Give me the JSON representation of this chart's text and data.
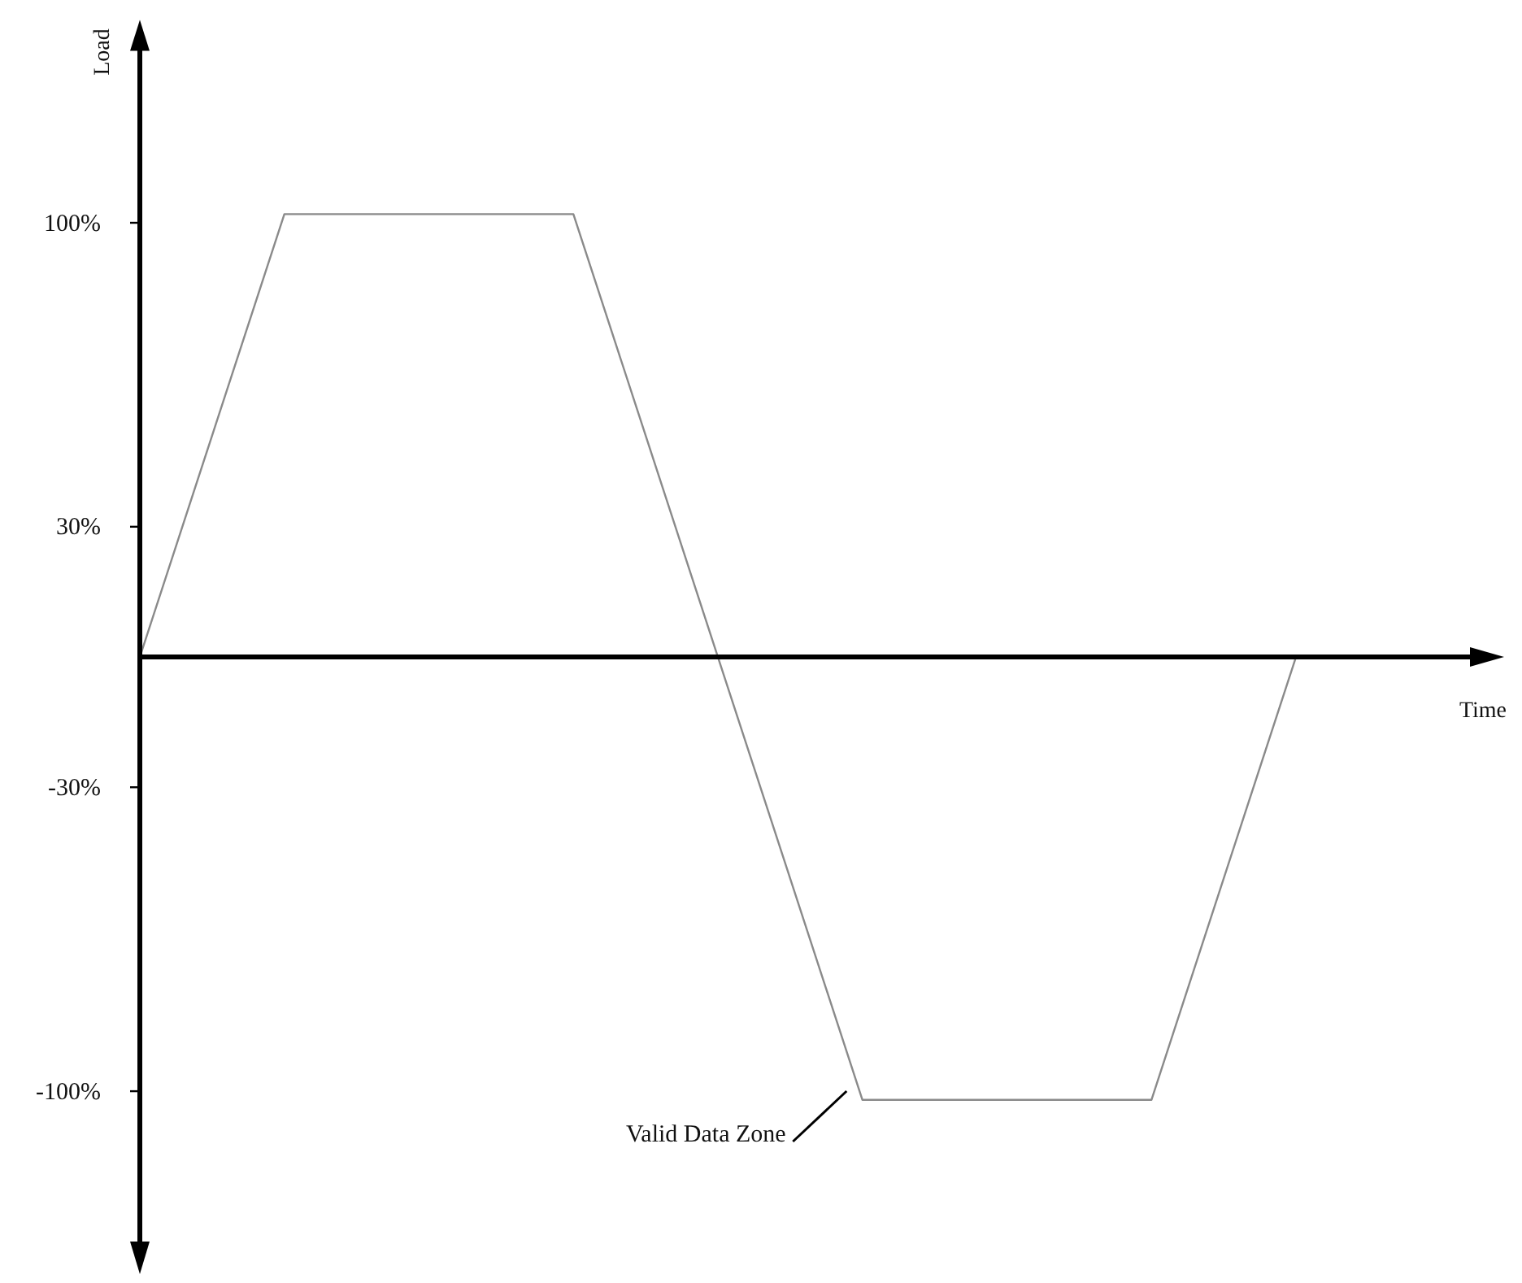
{
  "chart_data": {
    "type": "line",
    "xlabel": "Time",
    "ylabel": "Load",
    "categories": [
      null,
      null,
      null,
      null,
      null,
      null,
      null,
      null,
      null
    ],
    "series": [
      {
        "color": "#8a8a8a",
        "values": [
          0,
          102,
          102,
          102,
          0,
          -102,
          -102,
          -102,
          0
        ]
      }
    ],
    "ylim": [
      -135,
      140
    ],
    "yticks": [
      {
        "value": 100,
        "label": "100%"
      },
      {
        "value": 30,
        "label": "30%"
      },
      {
        "value": -30,
        "label": "-30%"
      },
      {
        "value": -100,
        "label": "-100%"
      }
    ],
    "tick_labels": "y",
    "annotations": [
      "Valid Data Zone"
    ]
  }
}
